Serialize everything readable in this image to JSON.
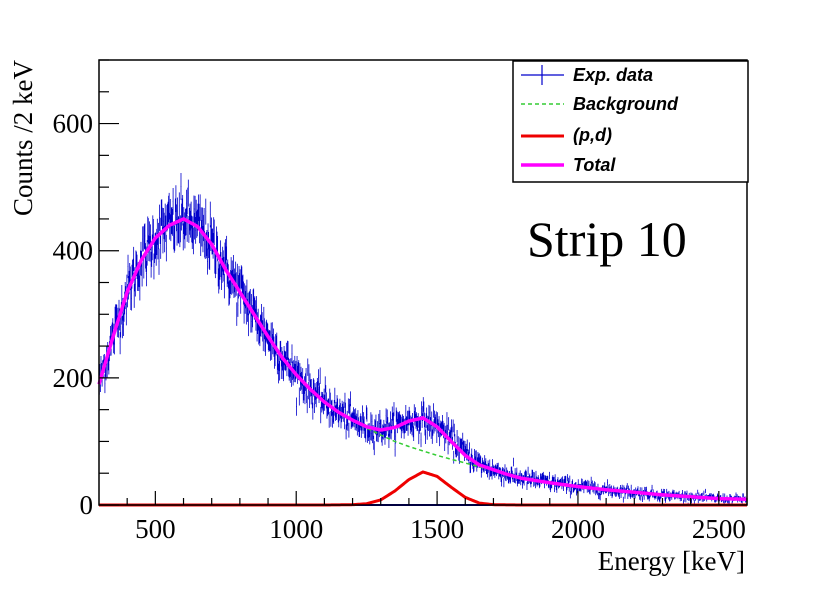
{
  "chart_data": {
    "type": "line",
    "title": "",
    "xlabel": "Energy [keV]",
    "ylabel": "Counts /2 keV",
    "xlim": [
      300,
      2600
    ],
    "ylim": [
      0,
      700
    ],
    "x_ticks": [
      500,
      1000,
      1500,
      2000,
      2500
    ],
    "y_ticks": [
      0,
      200,
      400,
      600
    ],
    "x_tick_labels": [
      "500",
      "1000",
      "1500",
      "2000",
      "2500"
    ],
    "y_tick_labels": [
      "0",
      "200",
      "400",
      "600"
    ],
    "grid": false,
    "legend_position": "top-right",
    "annotation": "Strip 10",
    "series": [
      {
        "name": "Exp. data",
        "style": "data-points-with-error-bars",
        "color": "#0000cc",
        "x": [
          300,
          350,
          400,
          450,
          500,
          550,
          600,
          650,
          700,
          750,
          800,
          850,
          900,
          950,
          1000,
          1050,
          1100,
          1150,
          1200,
          1250,
          1300,
          1350,
          1400,
          1450,
          1500,
          1550,
          1600,
          1650,
          1700,
          1750,
          1800,
          1900,
          2000,
          2100,
          2200,
          2300,
          2400,
          2500,
          2600
        ],
        "y": [
          190,
          265,
          335,
          385,
          420,
          440,
          450,
          438,
          410,
          370,
          335,
          300,
          265,
          232,
          205,
          182,
          162,
          146,
          133,
          123,
          120,
          125,
          132,
          133,
          125,
          105,
          82,
          65,
          55,
          48,
          42,
          35,
          29,
          24,
          20,
          16,
          13,
          10,
          9
        ]
      },
      {
        "name": "Background",
        "style": "dashed",
        "color": "#33cc33",
        "x": [
          300,
          350,
          400,
          450,
          500,
          550,
          600,
          650,
          700,
          750,
          800,
          850,
          900,
          950,
          1000,
          1050,
          1100,
          1150,
          1200,
          1250,
          1300,
          1350,
          1400,
          1450,
          1500,
          1550,
          1600,
          1650,
          1700,
          1750,
          1800,
          1900,
          2000,
          2100,
          2200,
          2300,
          2400,
          2500,
          2600
        ],
        "y": [
          190,
          265,
          335,
          385,
          420,
          440,
          450,
          438,
          410,
          370,
          335,
          300,
          265,
          232,
          205,
          182,
          162,
          146,
          133,
          121,
          110,
          100,
          92,
          85,
          78,
          72,
          66,
          60,
          55,
          48,
          42,
          35,
          29,
          24,
          20,
          16,
          13,
          10,
          9
        ]
      },
      {
        "name": "(p,d)",
        "style": "solid",
        "color": "#ee0000",
        "x": [
          300,
          1100,
          1200,
          1250,
          1300,
          1350,
          1400,
          1450,
          1500,
          1550,
          1600,
          1650,
          1700,
          1800,
          2600
        ],
        "y": [
          0,
          0,
          0.5,
          2,
          8,
          22,
          40,
          52,
          45,
          28,
          12,
          3,
          0.5,
          0,
          0
        ]
      },
      {
        "name": "Total",
        "style": "solid-thick",
        "color": "#ff00ff",
        "x": [
          300,
          350,
          400,
          450,
          500,
          550,
          600,
          650,
          700,
          750,
          800,
          850,
          900,
          950,
          1000,
          1050,
          1100,
          1150,
          1200,
          1250,
          1300,
          1350,
          1400,
          1450,
          1500,
          1550,
          1600,
          1650,
          1700,
          1750,
          1800,
          1900,
          2000,
          2100,
          2200,
          2300,
          2400,
          2500,
          2600
        ],
        "y": [
          190,
          265,
          335,
          385,
          420,
          440,
          450,
          438,
          410,
          370,
          335,
          300,
          265,
          232,
          205,
          182,
          162,
          146,
          133.5,
          123,
          118,
          122,
          132,
          137,
          123,
          100,
          78,
          63,
          55.5,
          48,
          42,
          35,
          29,
          24,
          20,
          16,
          13,
          10,
          9
        ]
      },
      {
        "name": "",
        "style": "baseline",
        "color": "#0000ff",
        "x": [
          300,
          2600
        ],
        "y": [
          0,
          0
        ]
      }
    ]
  }
}
